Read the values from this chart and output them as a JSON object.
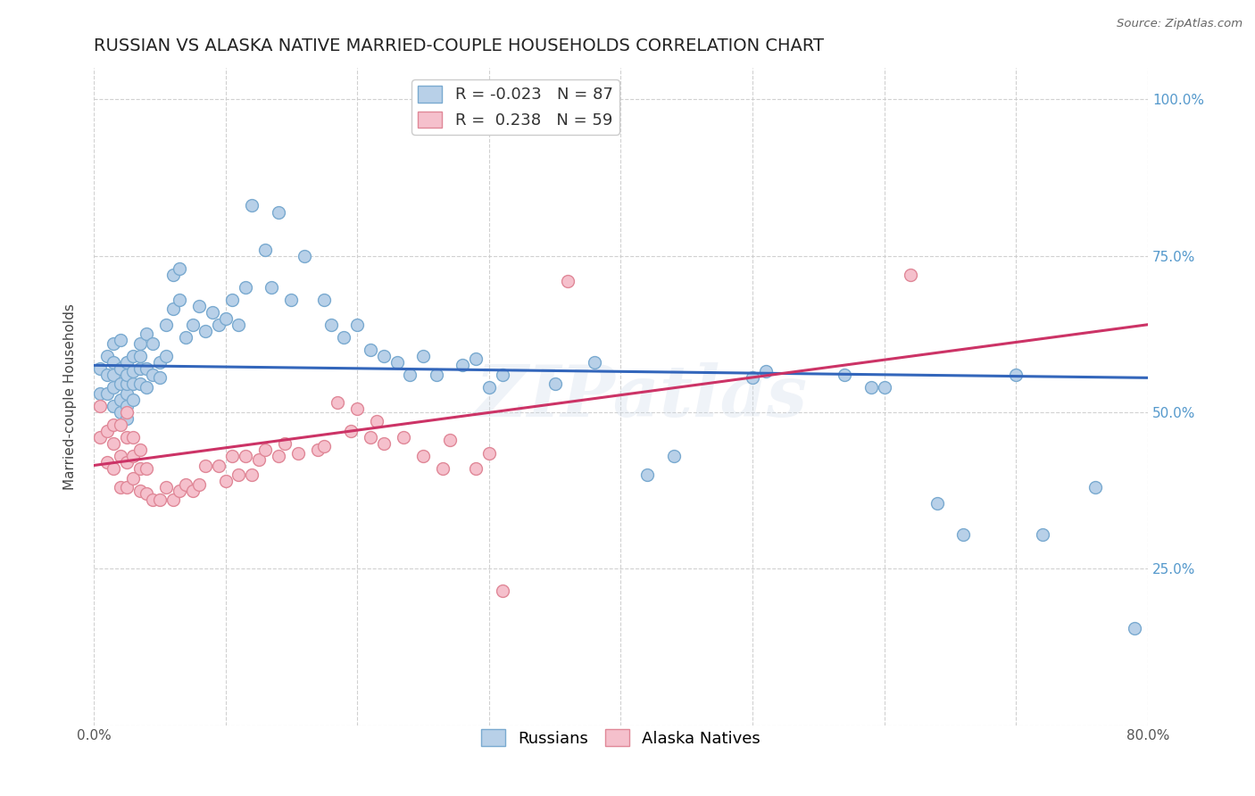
{
  "title": "RUSSIAN VS ALASKA NATIVE MARRIED-COUPLE HOUSEHOLDS CORRELATION CHART",
  "source": "Source: ZipAtlas.com",
  "ylabel": "Married-couple Households",
  "x_min": 0.0,
  "x_max": 0.8,
  "y_min": 0.0,
  "y_max": 1.05,
  "legend_blue_r": "-0.023",
  "legend_blue_n": "87",
  "legend_pink_r": "0.238",
  "legend_pink_n": "59",
  "blue_color": "#b8d0e8",
  "blue_edge": "#7aaad0",
  "pink_color": "#f5c0cc",
  "pink_edge": "#e08898",
  "blue_line_color": "#3366bb",
  "pink_line_color": "#cc3366",
  "watermark": "ZIPatlas",
  "blue_line_y_start": 0.575,
  "blue_line_y_end": 0.555,
  "pink_line_y_start": 0.415,
  "pink_line_y_end": 0.64,
  "blue_points_x": [
    0.005,
    0.005,
    0.01,
    0.01,
    0.01,
    0.015,
    0.015,
    0.015,
    0.015,
    0.015,
    0.02,
    0.02,
    0.02,
    0.02,
    0.02,
    0.025,
    0.025,
    0.025,
    0.025,
    0.025,
    0.025,
    0.03,
    0.03,
    0.03,
    0.03,
    0.035,
    0.035,
    0.035,
    0.035,
    0.04,
    0.04,
    0.04,
    0.045,
    0.045,
    0.05,
    0.05,
    0.055,
    0.055,
    0.06,
    0.06,
    0.065,
    0.065,
    0.07,
    0.075,
    0.08,
    0.085,
    0.09,
    0.095,
    0.1,
    0.105,
    0.11,
    0.115,
    0.12,
    0.13,
    0.135,
    0.14,
    0.15,
    0.16,
    0.175,
    0.18,
    0.19,
    0.2,
    0.21,
    0.22,
    0.23,
    0.24,
    0.25,
    0.26,
    0.28,
    0.29,
    0.3,
    0.31,
    0.35,
    0.38,
    0.42,
    0.44,
    0.5,
    0.51,
    0.57,
    0.59,
    0.6,
    0.64,
    0.66,
    0.7,
    0.72,
    0.76,
    0.79
  ],
  "blue_points_y": [
    0.53,
    0.57,
    0.53,
    0.56,
    0.59,
    0.51,
    0.54,
    0.56,
    0.58,
    0.61,
    0.5,
    0.52,
    0.545,
    0.57,
    0.615,
    0.49,
    0.51,
    0.53,
    0.545,
    0.56,
    0.58,
    0.52,
    0.545,
    0.565,
    0.59,
    0.545,
    0.57,
    0.59,
    0.61,
    0.54,
    0.57,
    0.625,
    0.56,
    0.61,
    0.555,
    0.58,
    0.59,
    0.64,
    0.665,
    0.72,
    0.68,
    0.73,
    0.62,
    0.64,
    0.67,
    0.63,
    0.66,
    0.64,
    0.65,
    0.68,
    0.64,
    0.7,
    0.83,
    0.76,
    0.7,
    0.82,
    0.68,
    0.75,
    0.68,
    0.64,
    0.62,
    0.64,
    0.6,
    0.59,
    0.58,
    0.56,
    0.59,
    0.56,
    0.575,
    0.585,
    0.54,
    0.56,
    0.545,
    0.58,
    0.4,
    0.43,
    0.555,
    0.565,
    0.56,
    0.54,
    0.54,
    0.355,
    0.305,
    0.56,
    0.305,
    0.38,
    0.155
  ],
  "pink_points_x": [
    0.005,
    0.005,
    0.01,
    0.01,
    0.015,
    0.015,
    0.015,
    0.02,
    0.02,
    0.02,
    0.025,
    0.025,
    0.025,
    0.025,
    0.03,
    0.03,
    0.03,
    0.035,
    0.035,
    0.035,
    0.04,
    0.04,
    0.045,
    0.05,
    0.055,
    0.06,
    0.065,
    0.07,
    0.075,
    0.08,
    0.085,
    0.095,
    0.1,
    0.105,
    0.11,
    0.115,
    0.12,
    0.125,
    0.13,
    0.14,
    0.145,
    0.155,
    0.17,
    0.175,
    0.185,
    0.195,
    0.2,
    0.21,
    0.215,
    0.22,
    0.235,
    0.25,
    0.265,
    0.27,
    0.29,
    0.3,
    0.31,
    0.36,
    0.62
  ],
  "pink_points_y": [
    0.46,
    0.51,
    0.42,
    0.47,
    0.41,
    0.45,
    0.48,
    0.38,
    0.43,
    0.48,
    0.38,
    0.42,
    0.46,
    0.5,
    0.395,
    0.43,
    0.46,
    0.375,
    0.41,
    0.44,
    0.37,
    0.41,
    0.36,
    0.36,
    0.38,
    0.36,
    0.375,
    0.385,
    0.375,
    0.385,
    0.415,
    0.415,
    0.39,
    0.43,
    0.4,
    0.43,
    0.4,
    0.425,
    0.44,
    0.43,
    0.45,
    0.435,
    0.44,
    0.445,
    0.515,
    0.47,
    0.505,
    0.46,
    0.485,
    0.45,
    0.46,
    0.43,
    0.41,
    0.455,
    0.41,
    0.435,
    0.215,
    0.71,
    0.72
  ],
  "marker_size": 100,
  "title_fontsize": 14,
  "axis_tick_fontsize": 11,
  "legend_fontsize": 13,
  "ylabel_fontsize": 11,
  "background_color": "#ffffff",
  "grid_color": "#cccccc",
  "tick_color_y_right": "#5599cc",
  "tick_color_x_bottom": "#555555"
}
